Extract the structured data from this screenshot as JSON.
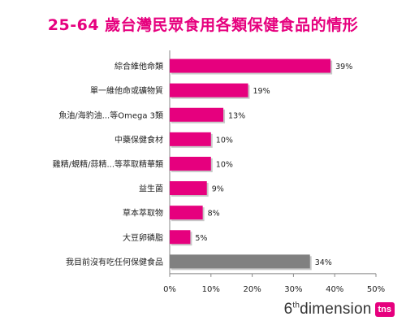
{
  "title": "25-64 歲台灣民眾食用各類保健食品的情形",
  "brand": {
    "logo_text_prefix": "6",
    "logo_text_sup": "th",
    "logo_text_main": "dimension",
    "badge": "tns"
  },
  "colors": {
    "accent": "#e6007e",
    "highlight_bar": "#808080",
    "title": "#e6007e"
  },
  "chart_data": {
    "type": "bar",
    "orientation": "horizontal",
    "title": "25-64 歲台灣民眾食用各類保健食品的情形",
    "categories": [
      "綜合維他命類",
      "單一維他命或礦物質",
      "魚油/海豹油...等Omega 3類",
      "中藥保健食材",
      "雞精/蜆精/蒜精...等萃取精華類",
      "益生菌",
      "草本萃取物",
      "大豆卵磷脂",
      "我目前沒有吃任何保健食品"
    ],
    "values": [
      39,
      19,
      13,
      10,
      10,
      9,
      8,
      5,
      34
    ],
    "value_labels": [
      "39%",
      "19%",
      "13%",
      "10%",
      "10%",
      "9%",
      "8%",
      "5%",
      "34%"
    ],
    "bar_colors": [
      "#e6007e",
      "#e6007e",
      "#e6007e",
      "#e6007e",
      "#e6007e",
      "#e6007e",
      "#e6007e",
      "#e6007e",
      "#808080"
    ],
    "xlim": [
      0,
      50
    ],
    "x_ticks": [
      0,
      10,
      20,
      30,
      40,
      50
    ],
    "x_tick_labels": [
      "0%",
      "10%",
      "20%",
      "30%",
      "40%",
      "50%"
    ],
    "xlabel": "",
    "ylabel": "",
    "grid": false,
    "legend": "none"
  }
}
